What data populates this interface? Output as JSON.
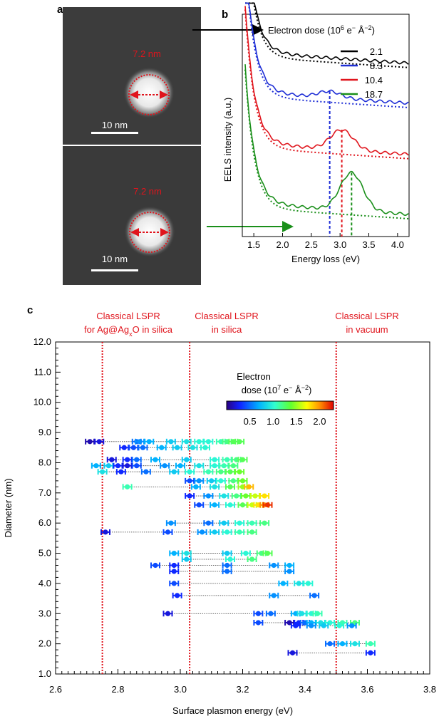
{
  "panel_a": {
    "label": "a",
    "images": [
      {
        "size_text": "7.2 nm",
        "scale_text": "10 nm"
      },
      {
        "size_text": "7.2 nm",
        "scale_text": "10 nm"
      }
    ]
  },
  "colors": {
    "dose_2_1": "#000000",
    "dose_8_3": "#1f2fd6",
    "dose_10_4": "#e0141c",
    "dose_18_7": "#1a8f1a",
    "annot_red": "#e0141c",
    "arrow_black": "#000000",
    "arrow_green": "#1a8f1a"
  },
  "chart_data": [
    {
      "type": "line",
      "panel_label": "b",
      "xlabel": "Energy loss (eV)",
      "ylabel": "EELS intensity (a.u.)",
      "xlim": [
        1.3,
        4.2
      ],
      "ylim": [
        0,
        1
      ],
      "xticks": [
        "1.5",
        "2.0",
        "2.5",
        "3.0",
        "3.5",
        "4.0"
      ],
      "legend_title": "Electron dose (10",
      "legend_title_sup": "6",
      "legend_title_tail": " e",
      "legend_title_tail_sup": "−",
      "legend_title_unit": " Å",
      "legend_title_unit_sup": "−2",
      "legend_title_close": ")",
      "legend_position": "top-right",
      "series": [
        {
          "name": "2.1",
          "color": "#000000",
          "offset": 0.78,
          "peak": 0,
          "dashed_peak": null
        },
        {
          "name": "8.3",
          "color": "#1f2fd6",
          "offset": 0.6,
          "peak": 0.03,
          "dashed_peak": 2.82
        },
        {
          "name": "10.4",
          "color": "#e0141c",
          "offset": 0.37,
          "peak": 0.09,
          "dashed_peak": 3.03
        },
        {
          "name": "18.7",
          "color": "#1a8f1a",
          "offset": 0.1,
          "peak": 0.17,
          "dashed_peak": 3.2
        }
      ]
    },
    {
      "type": "scatter",
      "panel_label": "c",
      "xlabel": "Surface plasmon energy (eV)",
      "ylabel": "Diameter (nm)",
      "xlim": [
        2.6,
        3.8
      ],
      "ylim": [
        1.0,
        12.0
      ],
      "xticks": [
        "2.6",
        "2.8",
        "3.0",
        "3.2",
        "3.4",
        "3.6",
        "3.8"
      ],
      "yticks": [
        "1.0",
        "2.0",
        "3.0",
        "4.0",
        "5.0",
        "6.0",
        "7.0",
        "8.0",
        "9.0",
        "10.0",
        "11.0",
        "12.0"
      ],
      "reference_lines": [
        {
          "x": 2.75,
          "label_line1": "Classical LSPR",
          "label_line2": "for Ag@Ag",
          "sub": "x",
          "tail": "O in silica"
        },
        {
          "x": 3.03,
          "label_line1": "Classical LSPR",
          "label_line2": "in silica"
        },
        {
          "x": 3.5,
          "label_line1": "Classical LSPR",
          "label_line2": "in vacuum"
        }
      ],
      "colorbar": {
        "title_line1": "Electron",
        "title_line2": "dose (10",
        "title_sup": "7",
        "title_tail": " e",
        "title_tail_sup": "−",
        "title_unit": " Å",
        "title_unit_sup": "−2",
        "title_close": ")",
        "ticks": [
          "0.5",
          "1.0",
          "1.5",
          "2.0"
        ],
        "range": [
          0,
          2.3
        ]
      },
      "rows": [
        {
          "d": 8.7,
          "x": [
            2.71,
            2.74,
            2.86,
            2.87,
            2.9,
            2.97,
            3.02,
            3.06,
            3.09,
            3.13,
            3.15,
            3.17,
            3.19
          ],
          "c": [
            0.1,
            0.2,
            0.5,
            0.6,
            0.7,
            0.8,
            0.9,
            1.0,
            1.0,
            1.1,
            1.2,
            1.3,
            1.3
          ]
        },
        {
          "d": 8.5,
          "x": [
            2.82,
            2.85,
            2.88,
            2.94,
            2.99,
            3.04,
            3.08
          ],
          "c": [
            0.3,
            0.4,
            0.5,
            0.7,
            0.8,
            0.9,
            1.0
          ]
        },
        {
          "d": 8.1,
          "x": [
            2.78,
            2.83,
            2.86,
            2.92,
            3.02,
            3.11,
            3.15,
            3.18,
            3.2
          ],
          "c": [
            0.2,
            0.3,
            0.5,
            0.7,
            0.8,
            1.0,
            1.1,
            1.2,
            1.3
          ]
        },
        {
          "d": 7.9,
          "x": [
            2.73,
            2.77,
            2.8,
            2.83,
            2.86,
            2.95,
            3.0,
            3.06,
            3.11,
            3.14,
            3.17
          ],
          "c": [
            0.7,
            0.8,
            0.3,
            0.2,
            0.4,
            0.6,
            0.7,
            0.9,
            1.0,
            1.1,
            1.2
          ]
        },
        {
          "d": 7.7,
          "x": [
            2.75,
            2.81,
            2.89,
            2.98,
            3.03,
            3.09,
            3.13,
            3.16,
            3.19
          ],
          "c": [
            0.9,
            0.3,
            0.5,
            0.8,
            1.0,
            1.1,
            1.2,
            1.3,
            1.4
          ]
        },
        {
          "d": 7.4,
          "x": [
            3.03,
            3.06,
            3.1,
            3.13,
            3.17,
            3.2
          ],
          "c": [
            0.4,
            0.6,
            0.8,
            1.0,
            1.2,
            1.4
          ]
        },
        {
          "d": 7.2,
          "x": [
            2.83,
            3.05,
            3.11,
            3.16,
            3.2,
            3.22
          ],
          "c": [
            1.1,
            0.7,
            0.9,
            1.3,
            1.5,
            1.9
          ]
        },
        {
          "d": 6.9,
          "x": [
            3.03,
            3.09,
            3.14,
            3.18,
            3.21,
            3.24,
            3.27
          ],
          "c": [
            0.3,
            0.6,
            0.9,
            1.2,
            1.4,
            1.6,
            1.8
          ]
        },
        {
          "d": 6.6,
          "x": [
            3.06,
            3.11,
            3.16,
            3.2,
            3.23,
            3.25,
            3.27,
            3.28
          ],
          "c": [
            0.4,
            0.7,
            1.0,
            1.3,
            1.6,
            1.8,
            2.0,
            2.2
          ]
        },
        {
          "d": 6.0,
          "x": [
            2.97,
            3.09,
            3.14,
            3.19,
            3.23,
            3.27
          ],
          "c": [
            0.6,
            0.5,
            0.8,
            1.0,
            1.1,
            1.2
          ]
        },
        {
          "d": 5.7,
          "x": [
            2.76,
            2.96,
            3.07,
            3.11,
            3.15,
            3.19,
            3.23
          ],
          "c": [
            0.2,
            0.4,
            0.6,
            0.8,
            1.0,
            1.1,
            1.2
          ]
        },
        {
          "d": 5.0,
          "x": [
            2.98,
            3.02,
            3.15,
            3.21,
            3.26,
            3.28
          ],
          "c": [
            0.7,
            0.9,
            0.8,
            1.0,
            1.2,
            1.3
          ]
        },
        {
          "d": 4.8,
          "x": [
            3.02,
            3.16,
            3.23
          ],
          "c": [
            0.8,
            1.0,
            1.2
          ]
        },
        {
          "d": 4.6,
          "x": [
            2.92,
            2.98,
            3.15,
            3.3,
            3.35
          ],
          "c": [
            0.4,
            0.3,
            0.5,
            0.6,
            0.7
          ]
        },
        {
          "d": 4.4,
          "x": [
            2.98,
            3.15,
            3.35
          ],
          "c": [
            0.3,
            0.5,
            0.6
          ]
        },
        {
          "d": 4.0,
          "x": [
            2.98,
            3.33,
            3.38,
            3.41
          ],
          "c": [
            0.4,
            0.7,
            0.9,
            1.0
          ]
        },
        {
          "d": 3.6,
          "x": [
            2.99,
            3.3,
            3.43
          ],
          "c": [
            0.3,
            0.6,
            0.5
          ]
        },
        {
          "d": 3.0,
          "x": [
            2.96,
            3.25,
            3.29,
            3.37,
            3.39,
            3.42,
            3.44
          ],
          "c": [
            0.2,
            0.4,
            0.5,
            0.7,
            0.9,
            1.0,
            1.1
          ]
        },
        {
          "d": 2.7,
          "x": [
            3.25,
            3.35,
            3.38,
            3.4,
            3.42,
            3.45,
            3.48,
            3.52,
            3.56
          ],
          "c": [
            0.4,
            0.1,
            0.3,
            0.5,
            0.7,
            0.9,
            1.0,
            1.1,
            1.2
          ]
        },
        {
          "d": 2.6,
          "x": [
            3.37,
            3.42,
            3.46,
            3.51,
            3.55
          ],
          "c": [
            0.3,
            0.6,
            0.8,
            1.0,
            0.6
          ]
        },
        {
          "d": 2.0,
          "x": [
            3.48,
            3.52,
            3.56,
            3.61
          ],
          "c": [
            0.5,
            0.7,
            0.9,
            1.1
          ]
        },
        {
          "d": 1.7,
          "x": [
            3.36,
            3.61
          ],
          "c": [
            0.2,
            0.3
          ]
        }
      ]
    }
  ]
}
